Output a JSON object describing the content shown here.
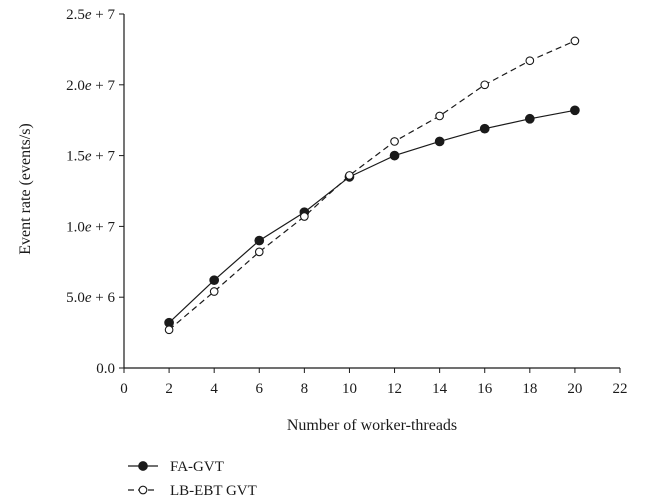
{
  "chart_data": {
    "type": "line",
    "xlabel": "Number of worker-threads",
    "ylabel": "Event rate (events/s)",
    "xlim": [
      0,
      22
    ],
    "ylim": [
      0,
      25000000
    ],
    "x_ticks": [
      0,
      2,
      4,
      6,
      8,
      10,
      12,
      14,
      16,
      18,
      20,
      22
    ],
    "x_tick_labels": [
      "0",
      "2",
      "4",
      "6",
      "8",
      "10",
      "12",
      "14",
      "16",
      "18",
      "20",
      "22"
    ],
    "y_ticks": [
      0,
      5000000,
      10000000,
      15000000,
      20000000,
      25000000
    ],
    "y_tick_labels": [
      {
        "mantissa": "0.0",
        "exp": ""
      },
      {
        "mantissa": "5.0",
        "exp": "6"
      },
      {
        "mantissa": "1.0",
        "exp": "7"
      },
      {
        "mantissa": "1.5",
        "exp": "7"
      },
      {
        "mantissa": "2.0",
        "exp": "7"
      },
      {
        "mantissa": "2.5",
        "exp": "7"
      }
    ],
    "grid": false,
    "legend_placement": "bottom-left",
    "x": [
      2,
      4,
      6,
      8,
      10,
      12,
      14,
      16,
      18,
      20
    ],
    "series": [
      {
        "name": "FA-GVT",
        "line_style": "solid",
        "marker": "filled-circle",
        "values": [
          3200000,
          6200000,
          9000000,
          11000000,
          13500000,
          15000000,
          16000000,
          16900000,
          17600000,
          18200000
        ]
      },
      {
        "name": "LB-EBT GVT",
        "line_style": "dashed",
        "marker": "open-circle",
        "values": [
          2700000,
          5400000,
          8200000,
          10700000,
          13600000,
          16000000,
          17800000,
          20000000,
          21700000,
          23100000
        ]
      }
    ]
  }
}
